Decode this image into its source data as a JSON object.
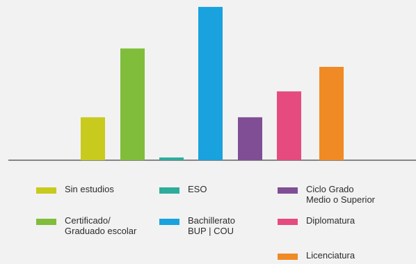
{
  "chart_data": {
    "type": "bar",
    "categories": [
      "Sin estudios",
      "Certificado/\nGraduado escolar",
      "ESO",
      "Bachillerato\nBUP | COU",
      "Ciclo Grado\nMedio o Superior",
      "Diplomatura",
      "Licenciatura"
    ],
    "values": [
      63,
      164,
      4,
      225,
      63,
      101,
      137
    ],
    "colors": [
      "#c8ca1e",
      "#80bd3a",
      "#2dac9c",
      "#19a2de",
      "#7f4e94",
      "#e54b7f",
      "#f08a24"
    ],
    "legend_position": "bottom",
    "grid": false,
    "ylim": [
      0,
      230
    ]
  }
}
